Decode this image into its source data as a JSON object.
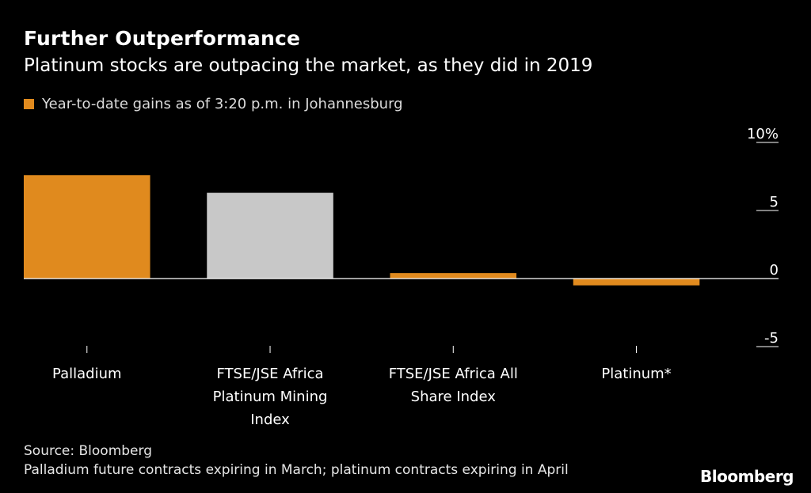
{
  "header": {
    "title": "Further Outperformance",
    "subtitle": "Platinum stocks are outpacing the market, as they did in 2019"
  },
  "legend": {
    "label": "Year-to-date gains as of 3:20 p.m. in Johannesburg",
    "color": "#e08a1e"
  },
  "footer": {
    "source": "Source: Bloomberg",
    "note": "Palladium future contracts expiring in March; platinum contracts expiring in April",
    "brand": "Bloomberg"
  },
  "chart_data": {
    "type": "bar",
    "categories": [
      [
        "Palladium"
      ],
      [
        "FTSE/JSE Africa",
        "Platinum Mining",
        "Index"
      ],
      [
        "FTSE/JSE Africa All",
        "Share Index"
      ],
      [
        "Platinum*"
      ]
    ],
    "values": [
      7.6,
      6.3,
      0.4,
      -0.5
    ],
    "bar_colors": [
      "#e08a1e",
      "#c8c8c8",
      "#e08a1e",
      "#e08a1e"
    ],
    "ylim": [
      -5,
      10
    ],
    "yticks": [
      10,
      5,
      0,
      -5
    ],
    "ytick_labels": [
      "10%",
      "5",
      "0",
      "-5"
    ],
    "ytick_position": "right",
    "grid": false
  }
}
